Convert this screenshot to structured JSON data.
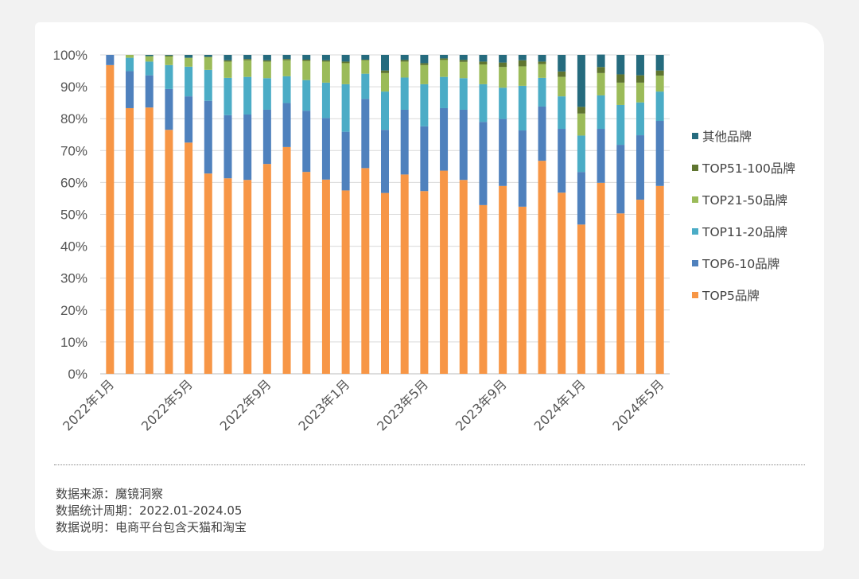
{
  "chart_data": {
    "type": "bar",
    "stacked": true,
    "normalized": true,
    "title": "",
    "xlabel": "",
    "ylabel": "",
    "ylim": [
      0,
      100
    ],
    "y_ticks": [
      "0%",
      "10%",
      "20%",
      "30%",
      "40%",
      "50%",
      "60%",
      "70%",
      "80%",
      "90%",
      "100%"
    ],
    "x_tick_labels": [
      "2022年1月",
      "2022年5月",
      "2022年9月",
      "2023年1月",
      "2023年5月",
      "2023年9月",
      "2024年1月",
      "2024年5月"
    ],
    "x_tick_every": 4,
    "legend_position": "right",
    "categories": [
      "2022-01",
      "2022-02",
      "2022-03",
      "2022-04",
      "2022-05",
      "2022-06",
      "2022-07",
      "2022-08",
      "2022-09",
      "2022-10",
      "2022-11",
      "2022-12",
      "2023-01",
      "2023-02",
      "2023-03",
      "2023-04",
      "2023-05",
      "2023-06",
      "2023-07",
      "2023-08",
      "2023-09",
      "2023-10",
      "2023-11",
      "2023-12",
      "2024-01",
      "2024-02",
      "2024-03",
      "2024-04",
      "2024-05"
    ],
    "series": [
      {
        "name": "TOP5品牌",
        "color": "#F79646",
        "values": [
          96.8,
          83.3,
          83.5,
          76.5,
          72.5,
          62.8,
          61.3,
          60.8,
          65.8,
          71.1,
          63.3,
          60.9,
          57.5,
          64.5,
          56.7,
          62.5,
          57.3,
          63.7,
          60.8,
          52.9,
          58.9,
          52.4,
          66.8,
          56.8,
          46.8,
          59.9,
          50.3,
          54.6,
          58.9
        ]
      },
      {
        "name": "TOP6-10品牌",
        "color": "#4F81BD",
        "values": [
          3.2,
          11.6,
          10.1,
          12.8,
          14.5,
          22.8,
          19.8,
          20.5,
          17.0,
          13.8,
          19.2,
          19.3,
          18.4,
          21.7,
          19.8,
          20.3,
          20.3,
          19.6,
          22.0,
          26.1,
          21.0,
          23.9,
          17.0,
          20.0,
          16.5,
          16.9,
          21.5,
          20.2,
          20.4
        ]
      },
      {
        "name": "TOP11-20品牌",
        "color": "#4BACC6",
        "values": [
          0,
          4.2,
          4.3,
          7.5,
          9.3,
          9.7,
          11.7,
          11.8,
          9.9,
          8.4,
          9.6,
          11.1,
          14.9,
          7.9,
          12.0,
          10.1,
          13.2,
          9.8,
          9.9,
          11.8,
          9.8,
          14.0,
          9.0,
          10.2,
          11.4,
          10.5,
          12.5,
          10.3,
          9.2
        ]
      },
      {
        "name": "TOP21-50品牌",
        "color": "#9BBB59",
        "values": [
          0,
          0.9,
          1.7,
          2.7,
          2.8,
          4.0,
          5.1,
          5.2,
          5.2,
          5.0,
          6.0,
          6.6,
          6.6,
          4.2,
          5.8,
          5.0,
          6.0,
          5.3,
          5.1,
          6.2,
          6.5,
          6.1,
          4.3,
          6.1,
          6.9,
          7.0,
          7.0,
          6.2,
          5.0
        ]
      },
      {
        "name": "TOP51-100品牌",
        "color": "#5F7530",
        "values": [
          0,
          0,
          0,
          0.3,
          0,
          0.1,
          0.4,
          0.4,
          0.4,
          0.4,
          0.4,
          0.4,
          0.5,
          0.2,
          0.8,
          0.5,
          0.6,
          0.5,
          0.6,
          0.9,
          1.4,
          1.9,
          0.8,
          1.7,
          2.1,
          1.9,
          2.6,
          2.3,
          1.6
        ]
      },
      {
        "name": "其他品牌",
        "color": "#256B7E",
        "values": [
          0,
          0,
          0.4,
          0.2,
          0.9,
          0.6,
          1.7,
          1.3,
          1.7,
          1.3,
          1.5,
          1.7,
          2.1,
          1.5,
          4.9,
          1.6,
          2.6,
          1.1,
          1.6,
          2.1,
          2.4,
          1.7,
          2.1,
          5.2,
          16.3,
          3.9,
          6.1,
          6.4,
          4.9
        ]
      }
    ],
    "legend_order": [
      "其他品牌",
      "TOP51-100品牌",
      "TOP21-50品牌",
      "TOP11-20品牌",
      "TOP6-10品牌",
      "TOP5品牌"
    ]
  },
  "notes": {
    "source": "数据来源：魔镜洞察",
    "period": "数据统计周期：2022.01-2024.05",
    "description": "数据说明：电商平台包含天猫和淘宝"
  }
}
